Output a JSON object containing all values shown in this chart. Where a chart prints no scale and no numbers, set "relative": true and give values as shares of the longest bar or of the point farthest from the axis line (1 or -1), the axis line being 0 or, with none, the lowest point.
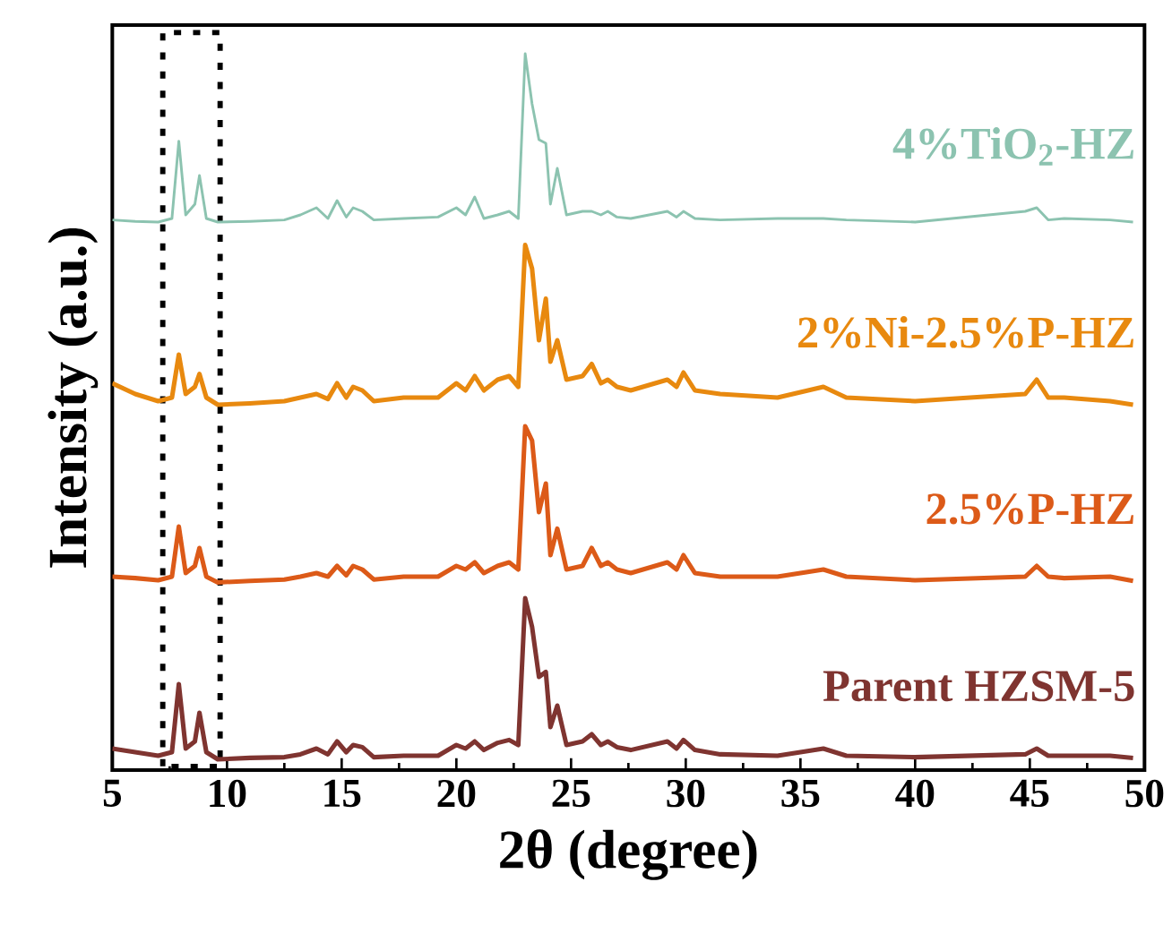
{
  "chart_data": {
    "type": "line",
    "relative": true,
    "xlabel": "2θ (degree)",
    "ylabel": "Intensity (a.u.)",
    "x": [
      5,
      6,
      7,
      7.6,
      7.9,
      8.2,
      8.6,
      8.8,
      9.1,
      9.6,
      11,
      12.5,
      13.2,
      13.9,
      14.4,
      14.8,
      15.2,
      15.5,
      15.9,
      16.4,
      17.7,
      19.2,
      20.0,
      20.4,
      20.8,
      21.2,
      21.8,
      22.3,
      22.7,
      23.0,
      23.3,
      23.6,
      23.9,
      24.1,
      24.4,
      24.8,
      25.5,
      25.9,
      26.3,
      26.6,
      27.0,
      27.6,
      29.2,
      29.6,
      29.9,
      30.4,
      31.5,
      34,
      36.0,
      37,
      40,
      44.8,
      45.3,
      45.8,
      46.5,
      48.5,
      49.5
    ],
    "xlim": [
      5,
      50
    ],
    "xticks": [
      5,
      10,
      15,
      20,
      25,
      30,
      35,
      40,
      45,
      50
    ],
    "line_style": "solid",
    "series": [
      {
        "name": "Parent HZSM-5",
        "color": "#7f3430",
        "values": [
          0.03,
          0.025,
          0.02,
          0.025,
          0.12,
          0.03,
          0.04,
          0.08,
          0.025,
          0.015,
          0.017,
          0.018,
          0.022,
          0.03,
          0.022,
          0.04,
          0.025,
          0.035,
          0.032,
          0.018,
          0.02,
          0.02,
          0.035,
          0.03,
          0.04,
          0.028,
          0.038,
          0.042,
          0.035,
          0.24,
          0.2,
          0.13,
          0.137,
          0.06,
          0.09,
          0.035,
          0.04,
          0.05,
          0.035,
          0.04,
          0.032,
          0.028,
          0.04,
          0.03,
          0.042,
          0.028,
          0.022,
          0.02,
          0.03,
          0.02,
          0.018,
          0.022,
          0.03,
          0.02,
          0.02,
          0.02,
          0.017
        ]
      },
      {
        "name": "2.5%P-HZ",
        "color": "#dc5a18",
        "values": [
          0.27,
          0.268,
          0.265,
          0.27,
          0.34,
          0.275,
          0.285,
          0.31,
          0.27,
          0.262,
          0.264,
          0.266,
          0.27,
          0.275,
          0.27,
          0.285,
          0.272,
          0.285,
          0.28,
          0.266,
          0.27,
          0.27,
          0.285,
          0.28,
          0.29,
          0.275,
          0.285,
          0.29,
          0.28,
          0.48,
          0.46,
          0.36,
          0.4,
          0.3,
          0.337,
          0.28,
          0.285,
          0.31,
          0.285,
          0.29,
          0.28,
          0.275,
          0.29,
          0.28,
          0.3,
          0.275,
          0.27,
          0.27,
          0.28,
          0.27,
          0.265,
          0.27,
          0.285,
          0.27,
          0.268,
          0.27,
          0.264
        ]
      },
      {
        "name": "2%Ni-2.5%P-HZ",
        "color": "#e8890f",
        "values": [
          0.54,
          0.525,
          0.515,
          0.52,
          0.58,
          0.525,
          0.535,
          0.553,
          0.52,
          0.51,
          0.512,
          0.515,
          0.52,
          0.525,
          0.518,
          0.54,
          0.52,
          0.535,
          0.53,
          0.515,
          0.52,
          0.52,
          0.54,
          0.53,
          0.55,
          0.53,
          0.545,
          0.55,
          0.535,
          0.733,
          0.7,
          0.6,
          0.658,
          0.57,
          0.6,
          0.545,
          0.55,
          0.567,
          0.54,
          0.545,
          0.535,
          0.53,
          0.545,
          0.535,
          0.555,
          0.53,
          0.525,
          0.52,
          0.535,
          0.52,
          0.515,
          0.525,
          0.545,
          0.52,
          0.52,
          0.515,
          0.51
        ]
      },
      {
        "name": "4%TiO$_{2}$-HZ",
        "color": "#8cc3b0",
        "values": [
          0.768,
          0.766,
          0.765,
          0.77,
          0.878,
          0.775,
          0.79,
          0.83,
          0.77,
          0.765,
          0.766,
          0.768,
          0.775,
          0.785,
          0.77,
          0.795,
          0.772,
          0.785,
          0.78,
          0.768,
          0.77,
          0.772,
          0.785,
          0.775,
          0.8,
          0.77,
          0.775,
          0.78,
          0.77,
          1.0,
          0.93,
          0.88,
          0.875,
          0.79,
          0.84,
          0.775,
          0.78,
          0.78,
          0.775,
          0.78,
          0.772,
          0.77,
          0.78,
          0.772,
          0.78,
          0.77,
          0.768,
          0.77,
          0.77,
          0.768,
          0.765,
          0.78,
          0.785,
          0.768,
          0.77,
          0.768,
          0.765
        ]
      }
    ],
    "bands": [
      {
        "axis": "x",
        "from": 7.2,
        "to": 9.7,
        "color": "#000000"
      }
    ]
  }
}
